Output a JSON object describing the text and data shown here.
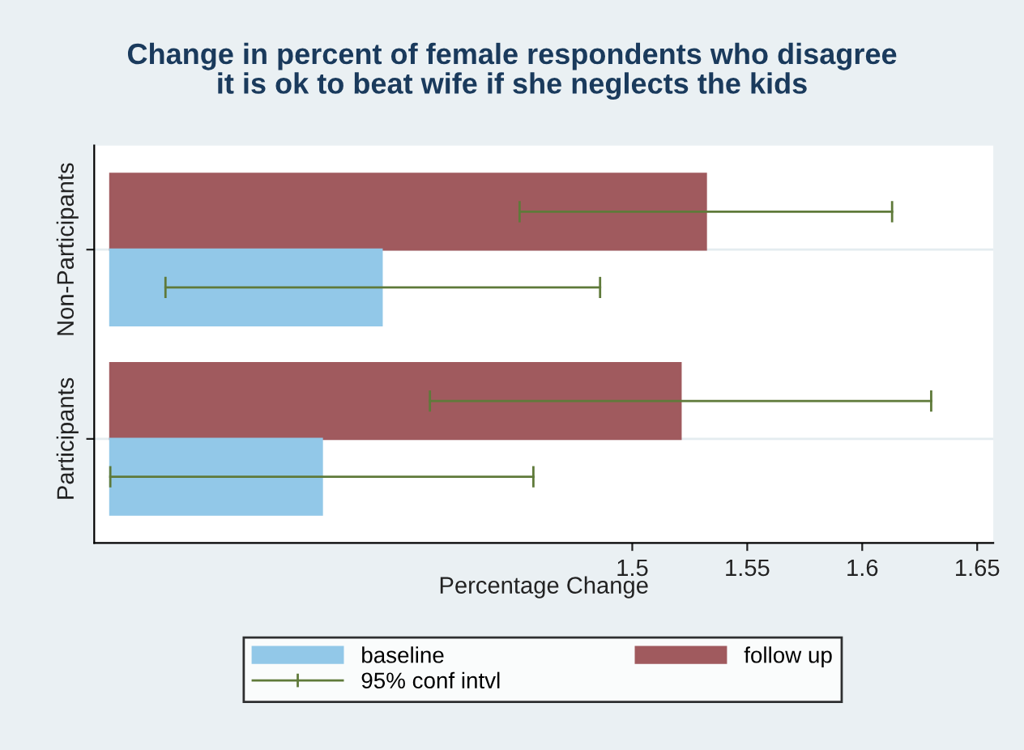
{
  "chart_data": {
    "type": "bar",
    "orientation": "horizontal",
    "title": "Change in percent of female respondents who disagree\nit is ok to beat wife if she neglects the kids",
    "xlabel": "Percentage Change",
    "categories": [
      "Non-Participants",
      "Participants"
    ],
    "series": [
      {
        "name": "follow up",
        "color": "#a05a5e",
        "base": [
          1.273,
          1.273
        ],
        "values": [
          0.259,
          0.248
        ],
        "errors": [
          [
            1.451,
            1.613
          ],
          [
            1.412,
            1.63
          ]
        ]
      },
      {
        "name": "baseline",
        "color": "#92c8e8",
        "base": [
          1.273,
          1.273
        ],
        "values": [
          0.118,
          0.092
        ],
        "errors": [
          [
            1.297,
            1.486
          ],
          [
            1.273,
            1.457
          ]
        ]
      }
    ],
    "annotations": [
      "95% conf intvl"
    ],
    "xlim": [
      1.266,
      1.657
    ],
    "xticks": [
      1.5,
      1.55,
      1.6,
      1.65
    ],
    "grid": "y",
    "legend": "bottom"
  }
}
